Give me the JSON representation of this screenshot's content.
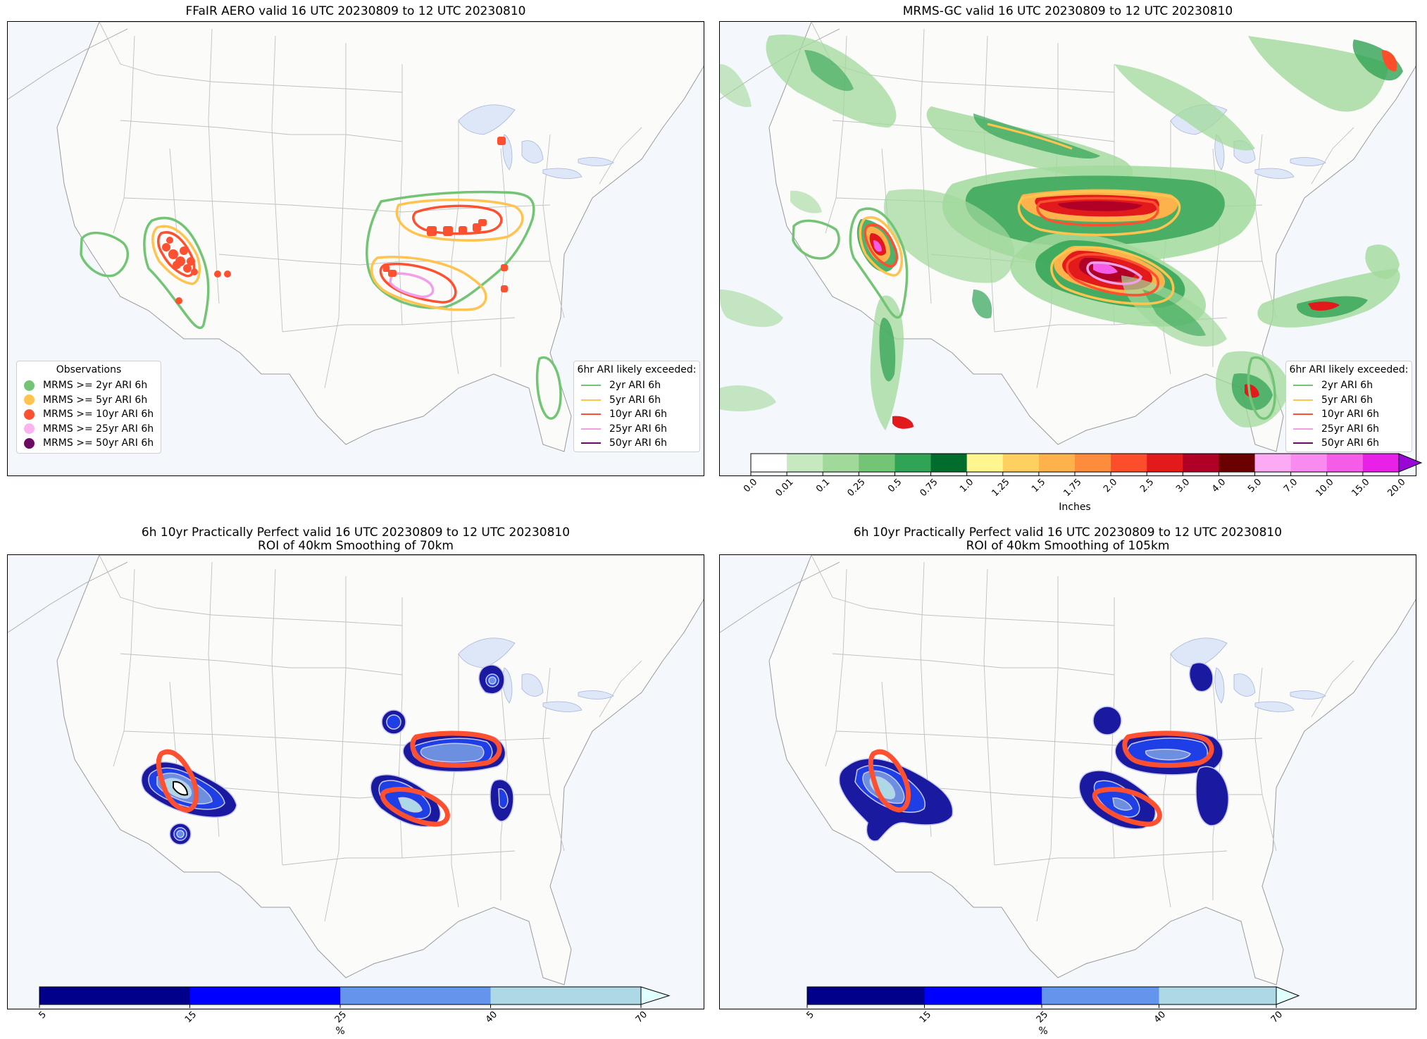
{
  "panels": [
    {
      "title": "FFaIR AERO valid 16 UTC 20230809 to 12 UTC 20230810",
      "observations_legend": {
        "title": "Observations",
        "items": [
          {
            "label": "MRMS >= 2yr ARI 6h",
            "color": "#74c476"
          },
          {
            "label": "MRMS >= 5yr ARI 6h",
            "color": "#fec44f"
          },
          {
            "label": "MRMS >= 10yr ARI 6h",
            "color": "#fc5030"
          },
          {
            "label": "MRMS >= 25yr ARI 6h",
            "color": "#fbb4f0"
          },
          {
            "label": "MRMS >= 50yr ARI 6h",
            "color": "#6a0a60"
          }
        ]
      },
      "ari_legend": {
        "title": "6hr ARI likely exceeded:",
        "items": [
          {
            "label": "2yr ARI 6h",
            "color": "#74c476"
          },
          {
            "label": "5yr ARI 6h",
            "color": "#fec44f"
          },
          {
            "label": "10yr ARI 6h",
            "color": "#fc5030"
          },
          {
            "label": "25yr ARI 6h",
            "color": "#f0a0e8"
          },
          {
            "label": "50yr ARI 6h",
            "color": "#6a0a60"
          }
        ]
      }
    },
    {
      "title": "MRMS-GC valid 16 UTC 20230809 to 12 UTC 20230810",
      "ari_legend": {
        "title": "6hr ARI likely exceeded:",
        "items": [
          {
            "label": "2yr ARI 6h",
            "color": "#74c476"
          },
          {
            "label": "5yr ARI 6h",
            "color": "#fec44f"
          },
          {
            "label": "10yr ARI 6h",
            "color": "#fc5030"
          },
          {
            "label": "25yr ARI 6h",
            "color": "#f0a0e8"
          },
          {
            "label": "50yr ARI 6h",
            "color": "#6a0a60"
          }
        ]
      },
      "colorbar": {
        "label": "Inches",
        "ticks": [
          "0.0",
          "0.01",
          "0.1",
          "0.25",
          "0.5",
          "0.75",
          "1.0",
          "1.25",
          "1.5",
          "1.75",
          "2.0",
          "2.5",
          "3.0",
          "4.0",
          "5.0",
          "7.0",
          "10.0",
          "15.0",
          "20.0"
        ],
        "colors": [
          "#ffffff",
          "#c7e9c0",
          "#a1d99b",
          "#74c476",
          "#31a354",
          "#006d2c",
          "#fff68f",
          "#ffd060",
          "#feb24c",
          "#fd8d3c",
          "#fc4e2a",
          "#e31a1c",
          "#b10026",
          "#6b0000",
          "#fcaaf4",
          "#f98af0",
          "#f55ce8",
          "#e820e8",
          "#9a06d8"
        ],
        "extend_color": "#9a06d8"
      }
    },
    {
      "title": "6h 10yr Practically Perfect valid 16 UTC 20230809 to 12 UTC 20230810",
      "subtitle": "ROI of 40km Smoothing of 70km",
      "colorbar": {
        "label": "%",
        "ticks": [
          "5",
          "15",
          "25",
          "40",
          "70"
        ],
        "colors": [
          "#00008b",
          "#0000ff",
          "#6495ed",
          "#add8e6"
        ],
        "extend_color": "#e0ffff"
      }
    },
    {
      "title": "6h 10yr Practically Perfect valid 16 UTC 20230809 to 12 UTC 20230810",
      "subtitle": "ROI of 40km Smoothing of 105km",
      "colorbar": {
        "label": "%",
        "ticks": [
          "5",
          "15",
          "25",
          "40",
          "70"
        ],
        "colors": [
          "#00008b",
          "#0000ff",
          "#6495ed",
          "#add8e6"
        ],
        "extend_color": "#e0ffff"
      }
    }
  ]
}
